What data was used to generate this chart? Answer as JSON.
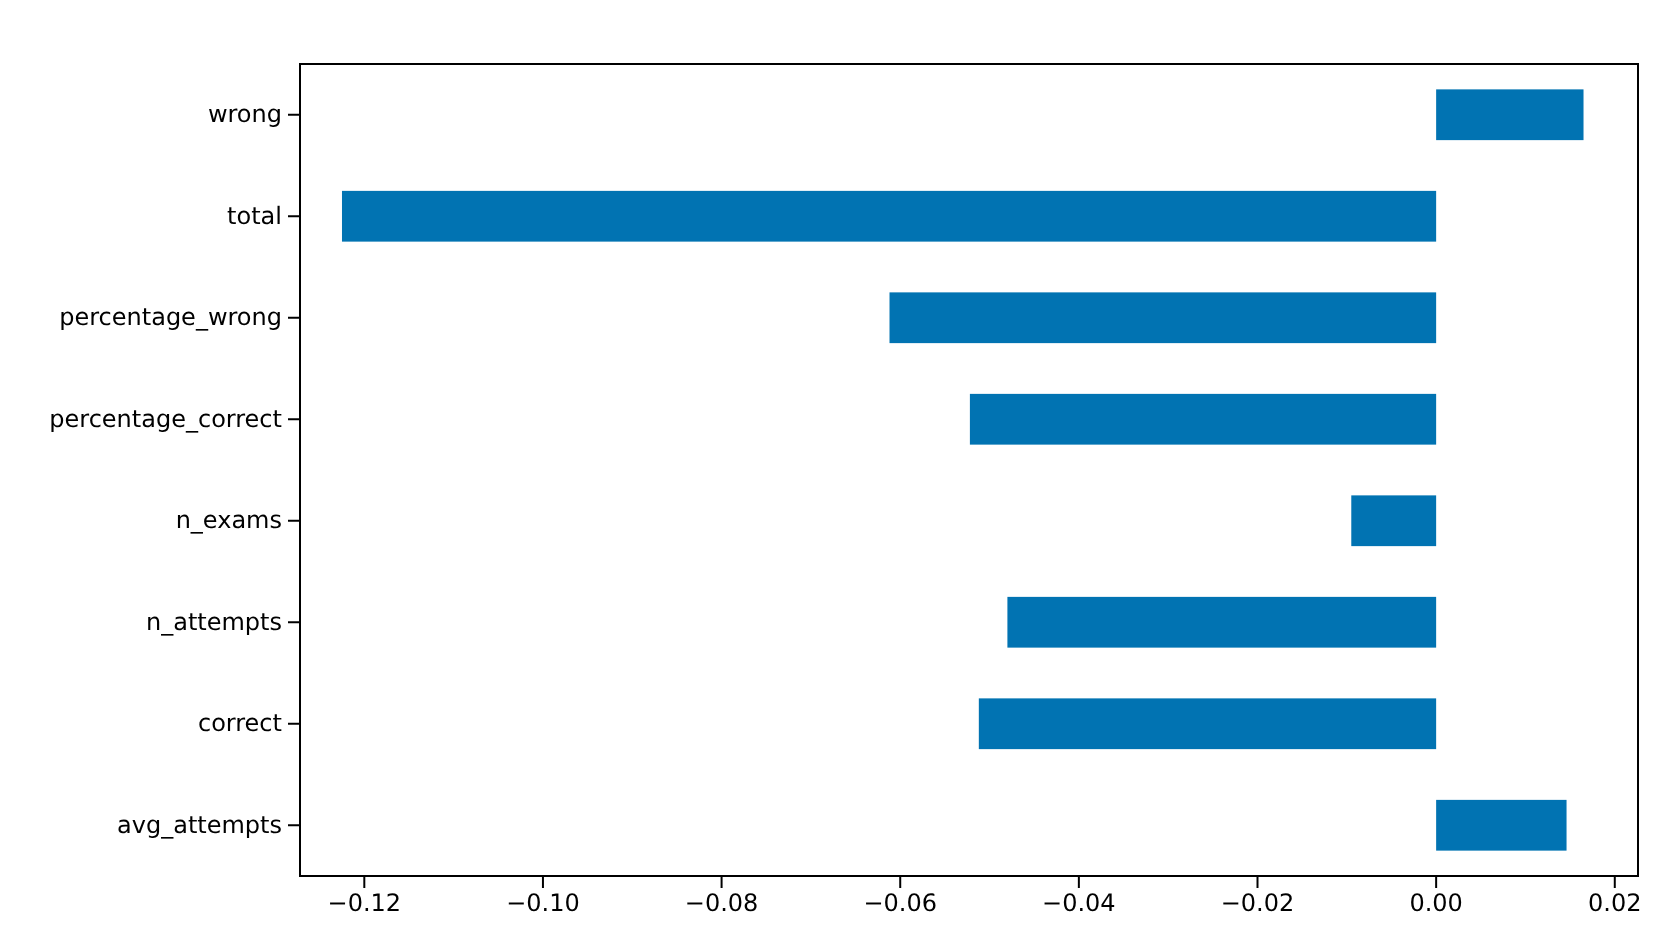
{
  "chart_data": {
    "type": "bar",
    "orientation": "horizontal",
    "categories": [
      "wrong",
      "total",
      "percentage_wrong",
      "percentage_correct",
      "n_exams",
      "n_attempts",
      "correct",
      "avg_attempts"
    ],
    "values": [
      0.0165,
      -0.1225,
      -0.0612,
      -0.0522,
      -0.0095,
      -0.048,
      -0.0512,
      0.0146
    ],
    "color": "#0173b2",
    "xlim": [
      -0.1272,
      0.0226
    ],
    "xticks": [
      {
        "value": -0.12,
        "label": "−0.12"
      },
      {
        "value": -0.1,
        "label": "−0.10"
      },
      {
        "value": -0.08,
        "label": "−0.08"
      },
      {
        "value": -0.06,
        "label": "−0.06"
      },
      {
        "value": -0.04,
        "label": "−0.04"
      },
      {
        "value": -0.02,
        "label": "−0.02"
      },
      {
        "value": 0,
        "label": "0.00"
      },
      {
        "value": 0.02,
        "label": "0.02"
      }
    ],
    "grid": false
  }
}
